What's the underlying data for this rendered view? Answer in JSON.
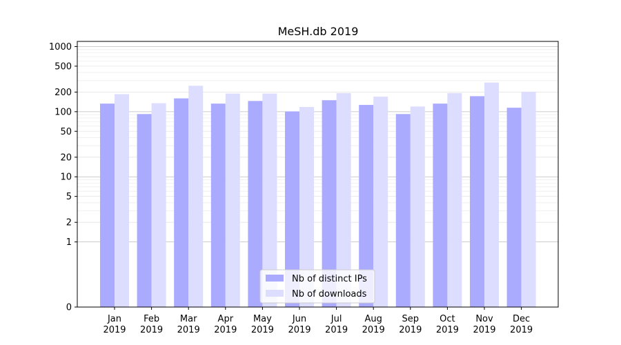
{
  "chart_data": {
    "type": "bar",
    "title": "MeSH.db 2019",
    "xlabel": "",
    "ylabel": "",
    "y_scale": "symlog",
    "ylim": [
      0,
      1200
    ],
    "y_ticks": [
      0,
      1,
      2,
      5,
      10,
      20,
      50,
      100,
      200,
      500,
      1000
    ],
    "y_tick_labels": [
      "0",
      "1",
      "2",
      "5",
      "10",
      "20",
      "50",
      "100",
      "200",
      "500",
      "1000"
    ],
    "grid": "horizontal",
    "categories": [
      {
        "month": "Jan",
        "year": "2019"
      },
      {
        "month": "Feb",
        "year": "2019"
      },
      {
        "month": "Mar",
        "year": "2019"
      },
      {
        "month": "Apr",
        "year": "2019"
      },
      {
        "month": "May",
        "year": "2019"
      },
      {
        "month": "Jun",
        "year": "2019"
      },
      {
        "month": "Jul",
        "year": "2019"
      },
      {
        "month": "Aug",
        "year": "2019"
      },
      {
        "month": "Sep",
        "year": "2019"
      },
      {
        "month": "Oct",
        "year": "2019"
      },
      {
        "month": "Nov",
        "year": "2019"
      },
      {
        "month": "Dec",
        "year": "2019"
      }
    ],
    "series": [
      {
        "name": "Nb of distinct IPs",
        "color": "#aaaaff",
        "values": [
          133,
          92,
          160,
          133,
          146,
          101,
          150,
          127,
          92,
          133,
          173,
          115
        ]
      },
      {
        "name": "Nb of downloads",
        "color": "#ddddff",
        "values": [
          186,
          135,
          250,
          190,
          190,
          118,
          193,
          170,
          120,
          193,
          280,
          203
        ]
      }
    ],
    "legend_position": "bottom-center"
  }
}
